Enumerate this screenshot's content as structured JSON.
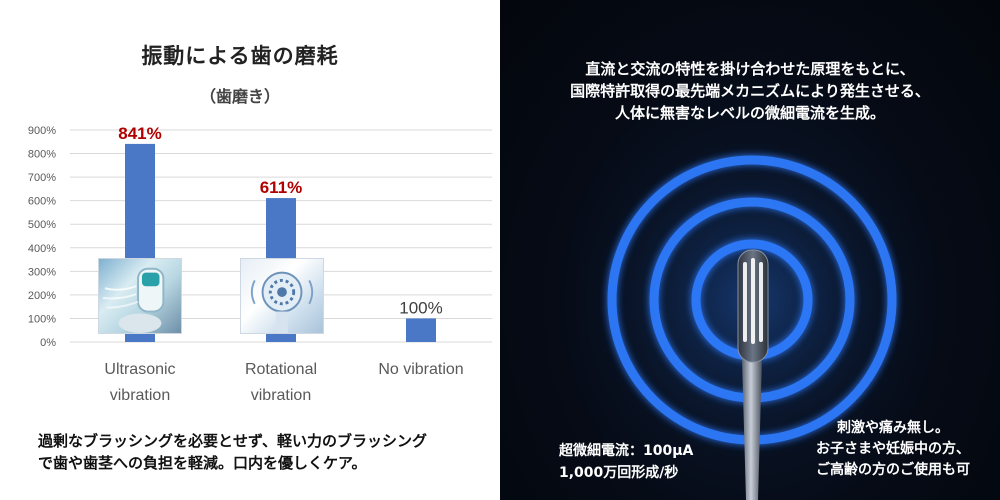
{
  "left": {
    "title": "振動による歯の磨耗",
    "subtitle": "（歯磨き）",
    "footer_lines": [
      "過剰なブラッシングを必要とせず、軽い力のブラッシング",
      "で歯や歯茎への負担を軽減。口内を優しくケア。"
    ]
  },
  "chart_data": {
    "type": "bar",
    "title": "振動による歯の磨耗",
    "subtitle": "（歯磨き）",
    "categories": [
      [
        "Ultrasonic",
        "vibration"
      ],
      [
        "Rotational",
        "vibration"
      ],
      [
        "No vibration"
      ]
    ],
    "values": [
      841,
      611,
      100
    ],
    "value_labels": [
      "841%",
      "611%",
      "100%"
    ],
    "value_label_colors": [
      "#b00000",
      "#b00000",
      "#404040"
    ],
    "ylim": [
      0,
      900
    ],
    "yticks": [
      0,
      100,
      200,
      300,
      400,
      500,
      600,
      700,
      800,
      900
    ],
    "ytick_labels": [
      "0%",
      "100%",
      "200%",
      "300%",
      "400%",
      "500%",
      "600%",
      "700%",
      "800%",
      "900%"
    ],
    "xlabel": "",
    "ylabel": "",
    "grid": true,
    "bar_color": "#4a78c6"
  },
  "right": {
    "headline_lines": [
      "直流と交流の特性を掛け合わせた原理をもとに、",
      "国際特許取得の最先端メカニズムにより発生させる、",
      "人体に無害なレベルの微細電流を生成。"
    ],
    "spec_lines": [
      "超微細電流：100μA",
      "1,000万回形成/秒"
    ],
    "benefit_lines": [
      "刺激や痛み無し。",
      "お子さまや妊娠中の方、",
      "ご高齢の方のご使用も可"
    ],
    "ring_color": "#2f7bff"
  }
}
